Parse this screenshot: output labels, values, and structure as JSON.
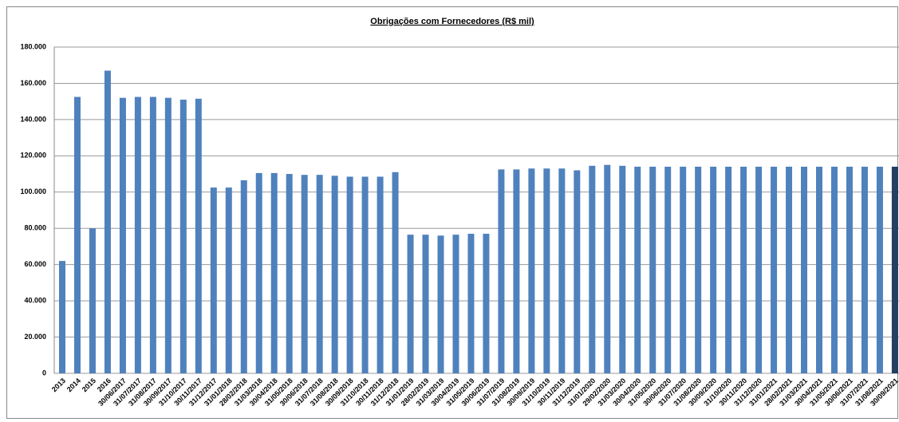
{
  "chart_data": {
    "type": "bar",
    "title": "Obrigações com Fornecedores (R$ mil)",
    "categories": [
      "2013",
      "2014",
      "2015",
      "2016",
      "30/06/2017",
      "31/07/2017",
      "31/08/2017",
      "30/09/2017",
      "31/10/2017",
      "30/11/2017",
      "31/12/2017",
      "31/01/2018",
      "28/02/2018",
      "31/03/2018",
      "30/04/2018",
      "31/05/2018",
      "30/06/2018",
      "31/07/2018",
      "31/08/2018",
      "30/09/2018",
      "31/10/2018",
      "30/11/2018",
      "31/12/2018",
      "31/01/2019",
      "28/02/2019",
      "31/03/2019",
      "30/04/2019",
      "31/05/2019",
      "30/06/2019",
      "31/07/2019",
      "31/08/2019",
      "30/09/2019",
      "31/10/2019",
      "30/11/2019",
      "31/12/2019",
      "31/01/2020",
      "29/02/2020",
      "31/03/2020",
      "30/04/2020",
      "31/05/2020",
      "30/06/2020",
      "31/07/2020",
      "31/08/2020",
      "30/09/2020",
      "31/10/2020",
      "30/11/2020",
      "31/12/2020",
      "31/01/2021",
      "28/02/2021",
      "31/03/2021",
      "30/04/2021",
      "31/05/2021",
      "30/06/2021",
      "31/07/2021",
      "31/08/2021",
      "30/09/2021"
    ],
    "values": [
      62000,
      152500,
      80000,
      167000,
      152000,
      152500,
      152500,
      152000,
      151000,
      151500,
      102500,
      102500,
      106500,
      110500,
      110500,
      110000,
      109500,
      109500,
      109000,
      108500,
      108500,
      108500,
      111000,
      76500,
      76500,
      76000,
      76500,
      77000,
      77000,
      112500,
      112500,
      113000,
      113000,
      113000,
      112000,
      114500,
      115000,
      114500,
      114000,
      114000,
      114000,
      114000,
      114000,
      114000,
      114000,
      114000,
      114000,
      114000,
      114000,
      114000,
      114000,
      114000,
      114000,
      114000,
      114000,
      114000
    ],
    "colors": [
      "#4f81bd",
      "#4f81bd",
      "#4f81bd",
      "#4f81bd",
      "#4f81bd",
      "#4f81bd",
      "#4f81bd",
      "#4f81bd",
      "#4f81bd",
      "#4f81bd",
      "#4f81bd",
      "#4f81bd",
      "#4f81bd",
      "#4f81bd",
      "#4f81bd",
      "#4f81bd",
      "#4f81bd",
      "#4f81bd",
      "#4f81bd",
      "#4f81bd",
      "#4f81bd",
      "#4f81bd",
      "#4f81bd",
      "#4f81bd",
      "#4f81bd",
      "#4f81bd",
      "#4f81bd",
      "#4f81bd",
      "#4f81bd",
      "#4f81bd",
      "#4f81bd",
      "#4f81bd",
      "#4f81bd",
      "#4f81bd",
      "#4f81bd",
      "#4f81bd",
      "#4f81bd",
      "#4f81bd",
      "#4f81bd",
      "#4f81bd",
      "#4f81bd",
      "#4f81bd",
      "#4f81bd",
      "#4f81bd",
      "#4f81bd",
      "#4f81bd",
      "#4f81bd",
      "#4f81bd",
      "#4f81bd",
      "#4f81bd",
      "#4f81bd",
      "#4f81bd",
      "#4f81bd",
      "#4f81bd",
      "#4f81bd",
      "#243f60"
    ],
    "ylim": [
      0,
      180000
    ],
    "yticks": [
      0,
      {
        "value": 20000,
        "label": "20.000"
      },
      {
        "value": 40000,
        "label": "40.000"
      },
      {
        "value": 60000,
        "label": "60.000"
      },
      {
        "value": 80000,
        "label": "80.000"
      },
      {
        "value": 100000,
        "label": "100.000"
      },
      {
        "value": 120000,
        "label": "120.000"
      },
      {
        "value": 140000,
        "label": "140.000"
      },
      {
        "value": 160000,
        "label": "160.000"
      },
      {
        "value": 180000,
        "label": "180.000"
      }
    ],
    "grid": true
  }
}
